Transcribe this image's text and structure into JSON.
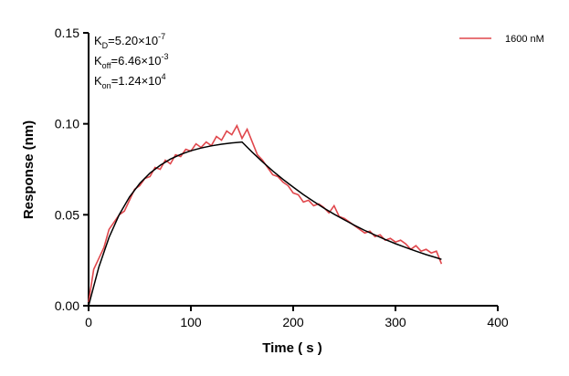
{
  "chart_data": {
    "type": "line",
    "xlabel": "Time ( s )",
    "ylabel": "Response (nm)",
    "xlim": [
      0,
      400
    ],
    "xticks": [
      0,
      100,
      200,
      300,
      400
    ],
    "ylim": [
      0,
      0.15
    ],
    "yticks": [
      {
        "value": 0,
        "label": "0.00"
      },
      0.05,
      {
        "value": 0.1,
        "label": "0.10"
      },
      0.15
    ],
    "legend": "top-right",
    "annotations": [
      {
        "symbol": "K",
        "subscript": "D",
        "text": "=5.20×10",
        "exponent": "-7"
      },
      {
        "symbol": "K",
        "subscript": "off",
        "text": "=6.46×10",
        "exponent": "-3"
      },
      {
        "symbol": "K",
        "subscript": "on",
        "text": "=1.24×10",
        "exponent": "4"
      }
    ],
    "series": [
      {
        "name": "1600 nM",
        "color": "#e0474c",
        "x": [
          0,
          5,
          10,
          15,
          20,
          25,
          30,
          35,
          40,
          45,
          50,
          55,
          60,
          65,
          70,
          75,
          80,
          85,
          90,
          95,
          100,
          105,
          110,
          115,
          120,
          125,
          130,
          135,
          140,
          145,
          150,
          155,
          160,
          165,
          170,
          175,
          180,
          185,
          190,
          195,
          200,
          205,
          210,
          215,
          220,
          225,
          230,
          235,
          240,
          245,
          250,
          255,
          260,
          265,
          270,
          275,
          280,
          285,
          290,
          295,
          300,
          305,
          310,
          315,
          320,
          325,
          330,
          335,
          340,
          345
        ],
        "values": [
          0.002,
          0.02,
          0.026,
          0.032,
          0.042,
          0.046,
          0.05,
          0.052,
          0.058,
          0.064,
          0.066,
          0.07,
          0.071,
          0.076,
          0.075,
          0.08,
          0.078,
          0.083,
          0.082,
          0.086,
          0.085,
          0.089,
          0.087,
          0.09,
          0.088,
          0.093,
          0.091,
          0.096,
          0.094,
          0.099,
          0.092,
          0.097,
          0.09,
          0.083,
          0.08,
          0.076,
          0.072,
          0.071,
          0.068,
          0.066,
          0.062,
          0.061,
          0.057,
          0.058,
          0.055,
          0.056,
          0.054,
          0.051,
          0.055,
          0.049,
          0.048,
          0.046,
          0.044,
          0.042,
          0.04,
          0.041,
          0.038,
          0.039,
          0.036,
          0.037,
          0.035,
          0.036,
          0.034,
          0.031,
          0.033,
          0.03,
          0.031,
          0.029,
          0.03,
          0.023
        ]
      },
      {
        "color": "#000000",
        "x": [
          0,
          10,
          20,
          30,
          40,
          50,
          60,
          70,
          80,
          90,
          100,
          110,
          120,
          130,
          140,
          150,
          160,
          170,
          180,
          190,
          200,
          210,
          220,
          230,
          240,
          250,
          260,
          270,
          280,
          290,
          300,
          310,
          320,
          330,
          340,
          345
        ],
        "values": [
          0,
          0.0212,
          0.0376,
          0.0501,
          0.0598,
          0.0672,
          0.0729,
          0.0772,
          0.0806,
          0.0832,
          0.0852,
          0.0867,
          0.0879,
          0.0888,
          0.0895,
          0.09,
          0.0844,
          0.0791,
          0.0741,
          0.0695,
          0.0652,
          0.0611,
          0.0573,
          0.0537,
          0.0503,
          0.0472,
          0.0442,
          0.0414,
          0.0389,
          0.0364,
          0.0341,
          0.032,
          0.03,
          0.0281,
          0.0264,
          0.0255
        ]
      }
    ]
  }
}
